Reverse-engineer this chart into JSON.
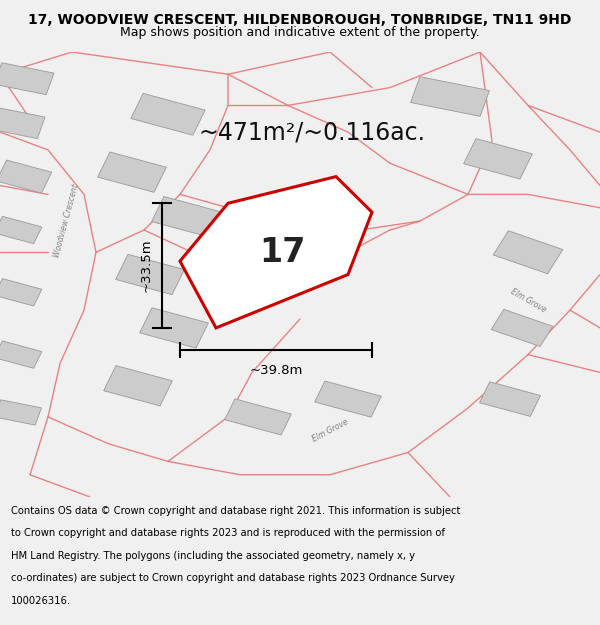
{
  "title_line1": "17, WOODVIEW CRESCENT, HILDENBOROUGH, TONBRIDGE, TN11 9HD",
  "title_line2": "Map shows position and indicative extent of the property.",
  "area_text": "~471m²/~0.116ac.",
  "property_number": "17",
  "dim_width": "~39.8m",
  "dim_height": "~33.5m",
  "footer_text": "Contains OS data © Crown copyright and database right 2021. This information is subject to Crown copyright and database rights 2023 and is reproduced with the permission of HM Land Registry. The polygons (including the associated geometry, namely x, y co-ordinates) are subject to Crown copyright and database rights 2023 Ordnance Survey 100026316.",
  "bg_color": "#f0f0f0",
  "map_bg": "#f0f0f0",
  "road_color": "#e87070",
  "building_color": "#cccccc",
  "building_edge": "#999999",
  "property_color": "#cc0000",
  "title_fontsize": 10,
  "subtitle_fontsize": 9,
  "area_fontsize": 17,
  "number_fontsize": 24,
  "dim_fontsize": 9.5,
  "footer_fontsize": 7.2,
  "road_lw": 1.0,
  "road_alpha": 0.85,
  "property_lw": 2.5
}
